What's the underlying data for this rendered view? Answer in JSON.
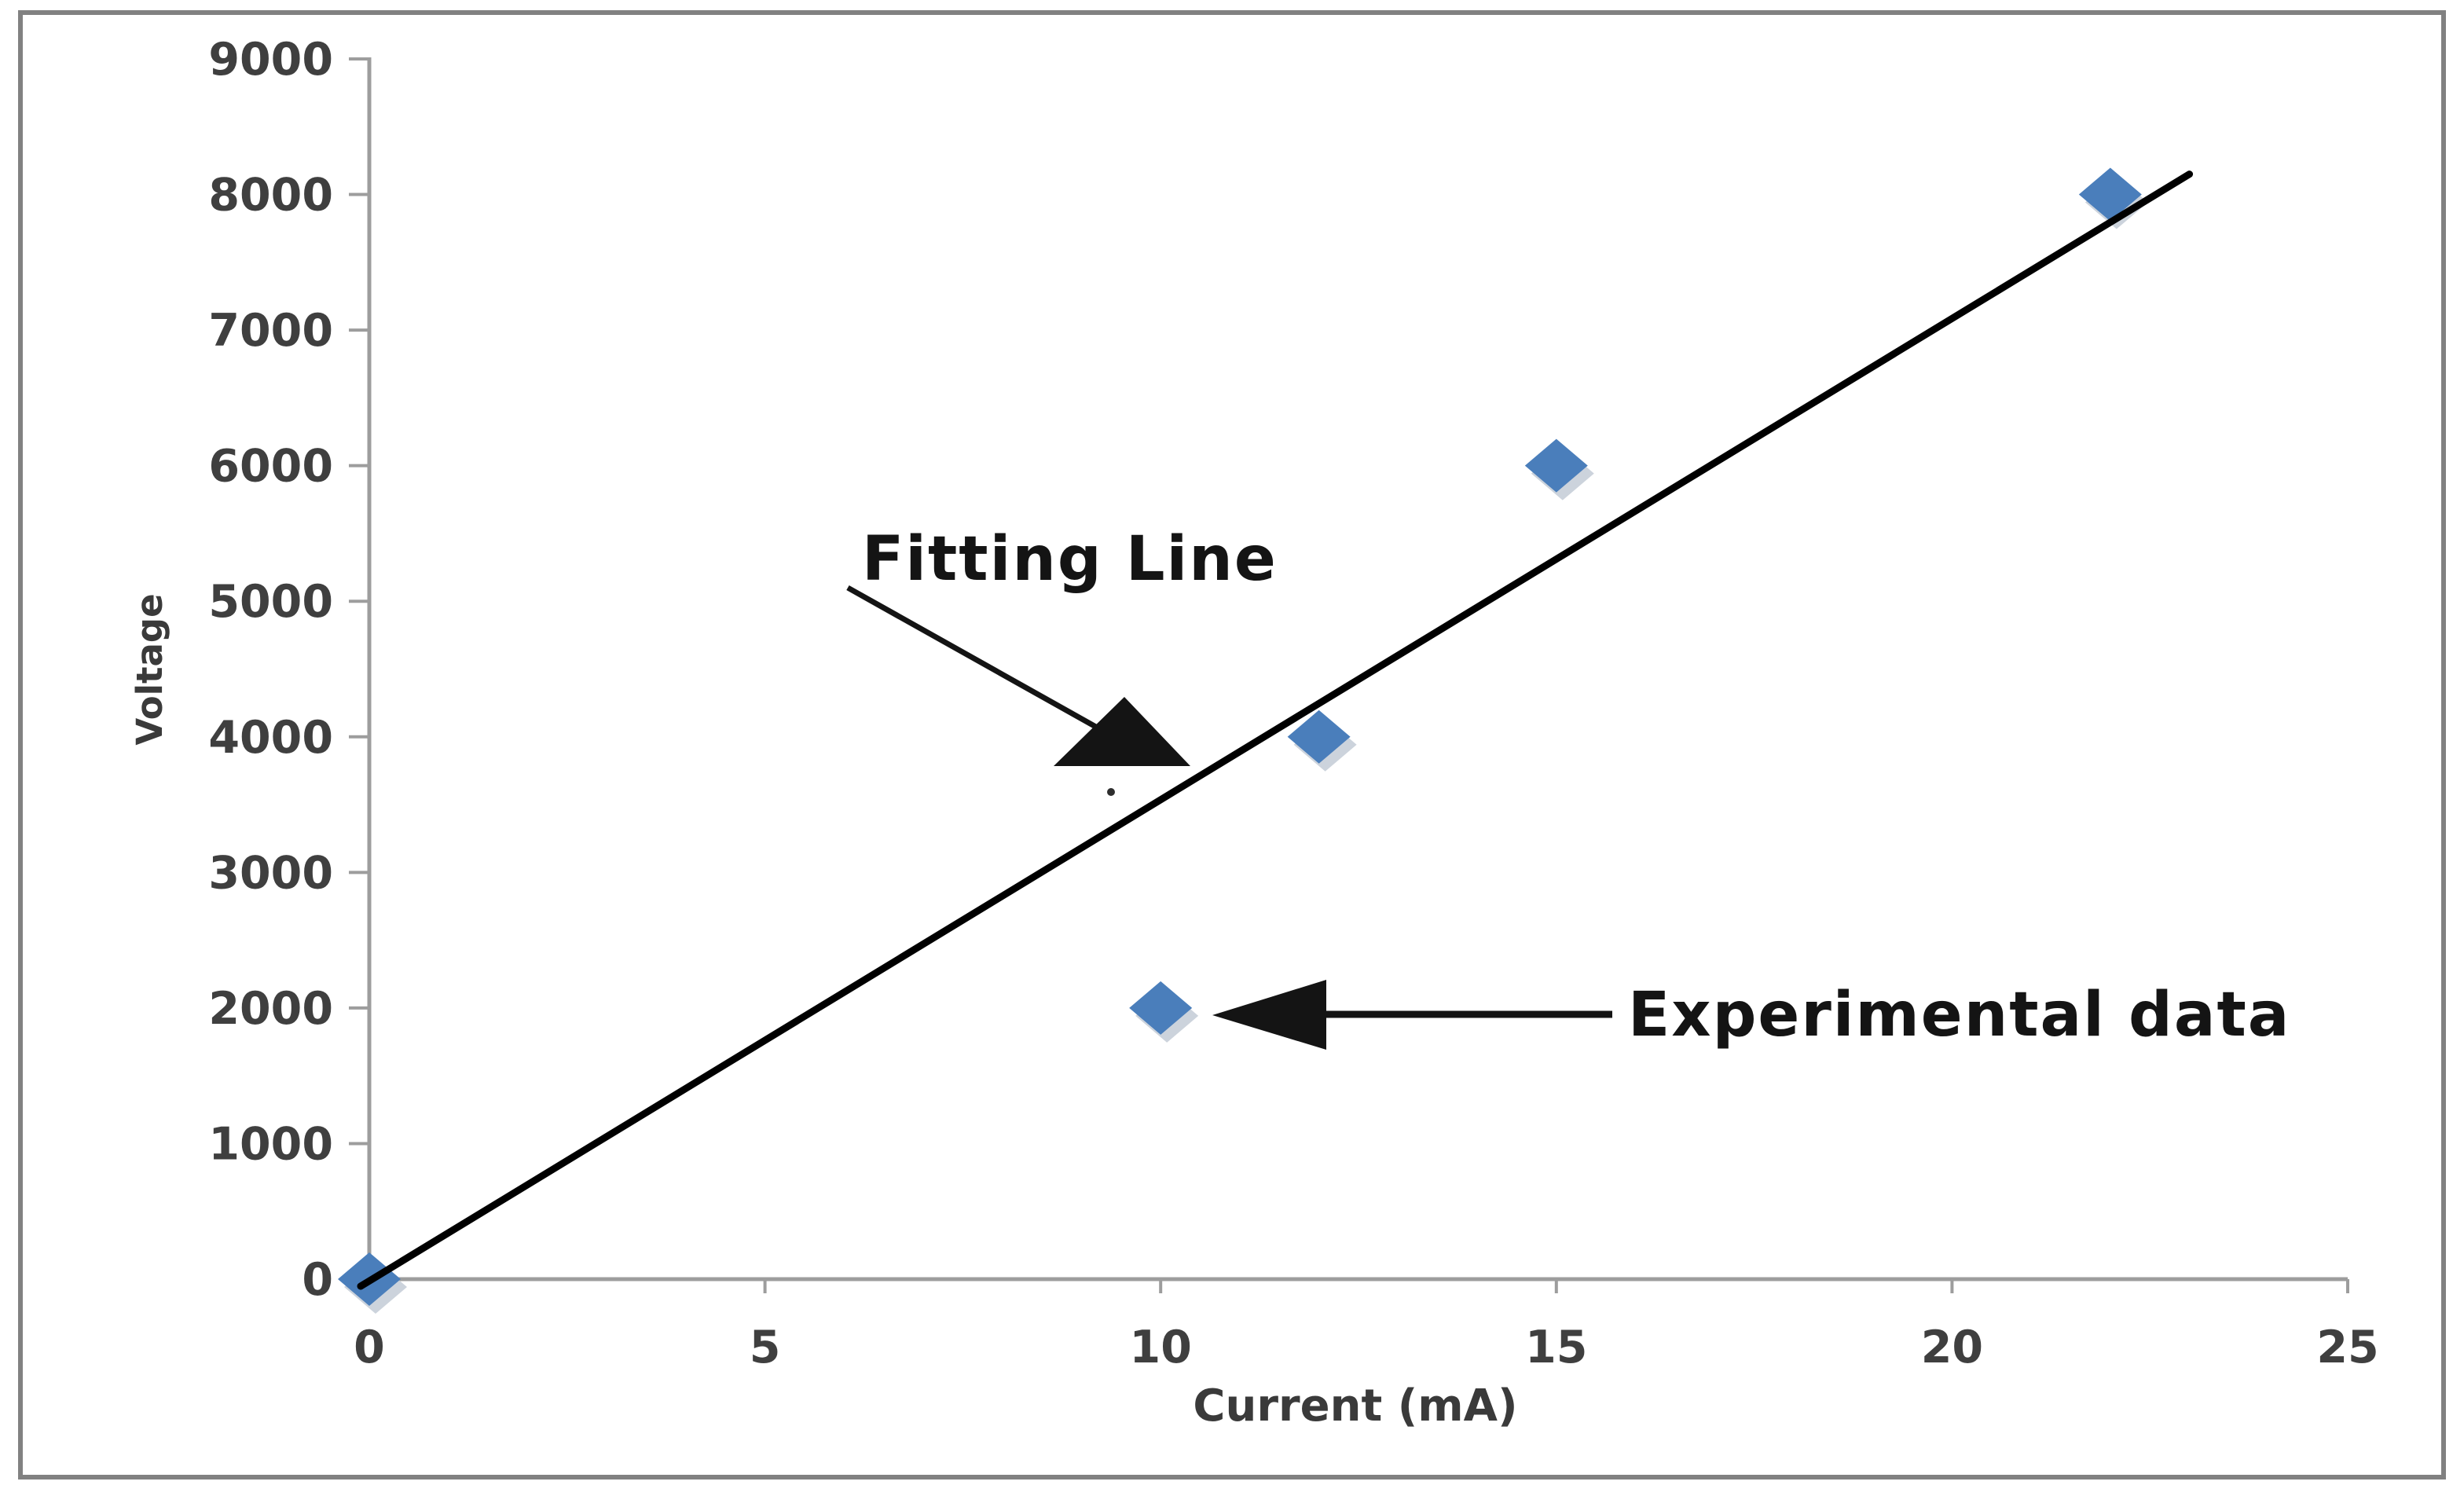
{
  "chart_data": {
    "type": "scatter",
    "title": "",
    "xlabel": "Current (mA)",
    "ylabel": "Voltage",
    "xlim": [
      0,
      25
    ],
    "ylim": [
      0,
      9000
    ],
    "xticks": [
      0,
      5,
      10,
      15,
      20,
      25
    ],
    "yticks": [
      0,
      1000,
      2000,
      3000,
      4000,
      5000,
      6000,
      7000,
      8000,
      9000
    ],
    "grid": false,
    "legend_position": "none",
    "series": [
      {
        "name": "Experimental data",
        "type": "scatter",
        "marker": "diamond",
        "color": "#4a7ebb",
        "points": [
          [
            0,
            0
          ],
          [
            10,
            2000
          ],
          [
            12,
            4000
          ],
          [
            15,
            6000
          ],
          [
            22,
            8000
          ]
        ]
      },
      {
        "name": "Fitting Line",
        "type": "line",
        "color": "#000000",
        "points": [
          [
            0,
            0
          ],
          [
            23,
            8150
          ]
        ]
      }
    ],
    "annotations": [
      {
        "text": "Fitting Line",
        "target": "fitted trend line near (10, 3800)",
        "arrow_direction": "down-right"
      },
      {
        "text": "Experimental data",
        "target": "data point at (10, 2000)",
        "arrow_direction": "left"
      }
    ]
  },
  "colors": {
    "background": "#ffffff",
    "border": "#818181",
    "axis": "#9d9d9d",
    "tick_label": "#3f3f3f",
    "axis_title": "#3a3a3a",
    "annotation": "#141414",
    "fit_line": "#000000",
    "marker": "#4a7ebb",
    "marker_shadow": "#ccd3dc"
  }
}
